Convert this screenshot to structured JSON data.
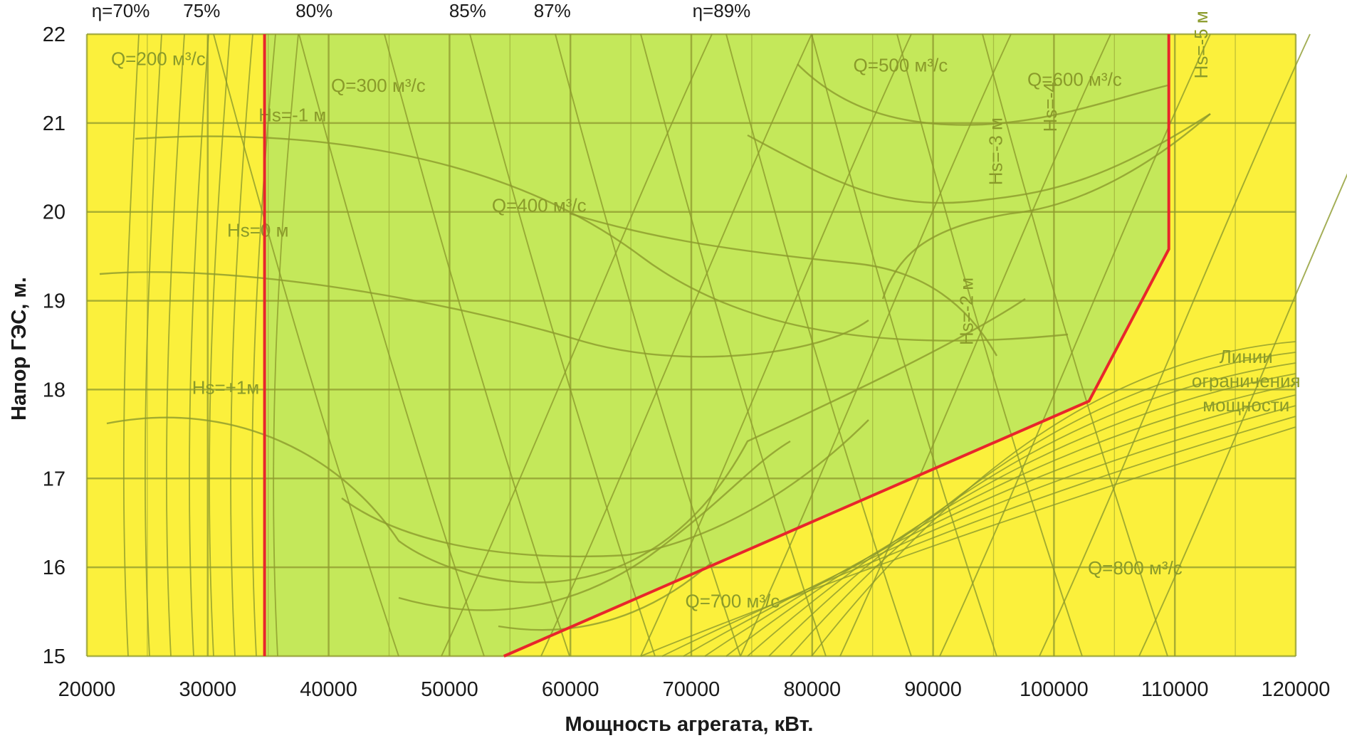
{
  "chart_data": {
    "type": "line",
    "title": "",
    "xlabel": "Мощность агрегата, кВт.",
    "ylabel": "Напор ГЭС, м.",
    "xlim": [
      20000,
      120000
    ],
    "ylim": [
      15,
      22
    ],
    "x_ticks": [
      20000,
      30000,
      40000,
      50000,
      60000,
      70000,
      80000,
      90000,
      100000,
      110000,
      120000
    ],
    "y_ticks": [
      15,
      16,
      17,
      18,
      19,
      20,
      21,
      22
    ],
    "grid": true,
    "background_color": "#fbf03c",
    "operating_zone_color": "#c4e85a",
    "boundary_color": "#e8262b",
    "operating_zone_boundary": {
      "name": "",
      "x": [
        34700,
        34700,
        109500,
        109500,
        102900,
        54500
      ],
      "y": [
        15,
        22,
        22,
        19.58,
        17.87,
        15
      ]
    },
    "top_labels": [
      {
        "text": "η=70%",
        "x": 22800
      },
      {
        "text": "75%",
        "x": 29500
      },
      {
        "text": "80%",
        "x": 38800
      },
      {
        "text": "85%",
        "x": 51500
      },
      {
        "text": "87%",
        "x": 58500
      },
      {
        "text": "η=89%",
        "x": 72500
      }
    ],
    "flow_labels": [
      {
        "text": "Q=200 м³/с",
        "x": 22000,
        "y": 21.65
      },
      {
        "text": "Q=300 м³/с",
        "x": 40200,
        "y": 21.35
      },
      {
        "text": "Q=400 м³/с",
        "x": 53500,
        "y": 20.0
      },
      {
        "text": "Q=500 м³/с",
        "x": 83400,
        "y": 21.58
      },
      {
        "text": "Q=600 м³/с",
        "x": 97800,
        "y": 21.42
      },
      {
        "text": "Q=700 м³/с",
        "x": 69500,
        "y": 15.55
      },
      {
        "text": "Q=800 м³/с",
        "x": 102800,
        "y": 15.92
      }
    ],
    "suction_labels": [
      {
        "text": "Hs=-1 м",
        "x": 34200,
        "y": 21.02
      },
      {
        "text": "Hs=0 м",
        "x": 31600,
        "y": 19.72
      },
      {
        "text": "Hs=+1м",
        "x": 28700,
        "y": 17.95
      },
      {
        "text": "Hs=-2 м",
        "x": 93300,
        "y": 18.5
      },
      {
        "text": "Hs=-3 м",
        "x": 95700,
        "y": 20.3
      },
      {
        "text": "Hs=-4",
        "x": 100200,
        "y": 20.9
      },
      {
        "text": "Hs=-5 м",
        "x": 112700,
        "y": 21.5
      }
    ],
    "annotation": {
      "lines": [
        "Линии",
        "ограничения",
        "мощности"
      ],
      "x": 110300,
      "y": 18.3
    }
  }
}
